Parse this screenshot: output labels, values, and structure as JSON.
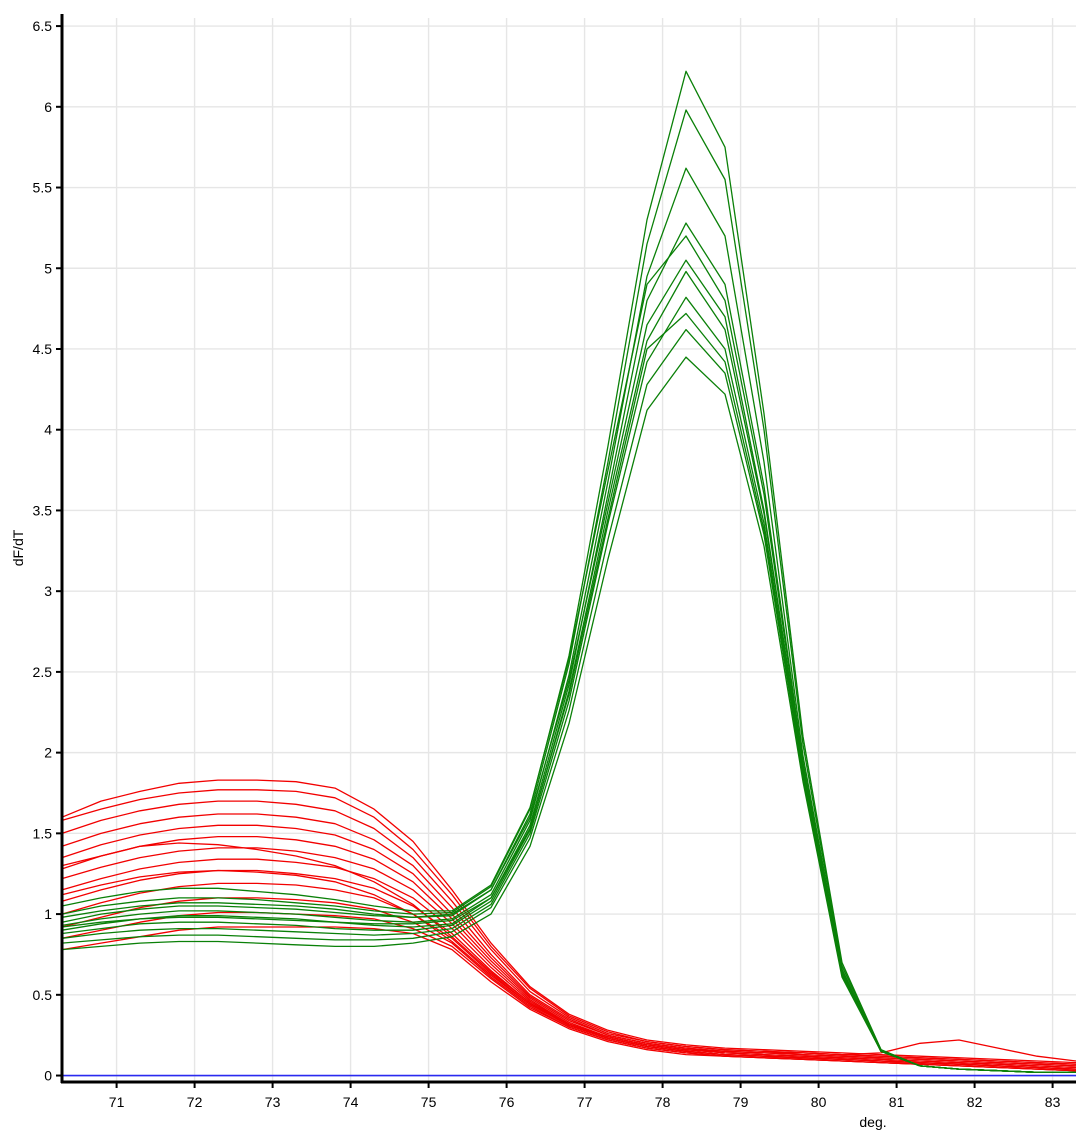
{
  "chart_data": {
    "type": "line",
    "title": "",
    "xlabel": "deg.",
    "ylabel": "dF/dT",
    "xlim": [
      70.3,
      83.3
    ],
    "ylim": [
      -0.04,
      6.55
    ],
    "x_ticks": [
      71,
      72,
      73,
      74,
      75,
      76,
      77,
      78,
      79,
      80,
      81,
      82,
      83
    ],
    "x_tick_labels": [
      "71",
      "72",
      "73",
      "74",
      "75",
      "76",
      "77",
      "78",
      "79",
      "80",
      "81",
      "82",
      "83"
    ],
    "y_ticks": [
      0,
      0.5,
      1,
      1.5,
      2,
      2.5,
      3,
      3.5,
      4,
      4.5,
      5,
      5.5,
      6,
      6.5
    ],
    "y_tick_labels": [
      "0",
      "0.5",
      "1",
      "1.5",
      "2",
      "2.5",
      "3",
      "3.5",
      "4",
      "4.5",
      "5",
      "5.5",
      "6",
      "6.5"
    ],
    "grid": true,
    "legend": "none",
    "colors": {
      "red_group": "#f20000",
      "green_group": "#0a8008",
      "baseline": "#2a2af0"
    },
    "x": [
      70.3,
      70.8,
      71.3,
      71.8,
      72.3,
      72.8,
      73.3,
      73.8,
      74.3,
      74.8,
      75.3,
      75.8,
      76.3,
      76.8,
      77.3,
      77.8,
      78.3,
      78.8,
      79.3,
      79.8,
      80.3,
      80.8,
      81.3,
      81.8,
      82.3,
      82.8,
      83.3
    ],
    "series": [
      {
        "group": "red",
        "values": [
          1.6,
          1.7,
          1.76,
          1.81,
          1.83,
          1.83,
          1.82,
          1.78,
          1.65,
          1.45,
          1.15,
          0.82,
          0.55,
          0.38,
          0.28,
          0.22,
          0.19,
          0.17,
          0.16,
          0.15,
          0.14,
          0.13,
          0.12,
          0.11,
          0.1,
          0.09,
          0.08
        ]
      },
      {
        "group": "red",
        "values": [
          1.58,
          1.65,
          1.71,
          1.75,
          1.77,
          1.77,
          1.76,
          1.72,
          1.6,
          1.4,
          1.12,
          0.8,
          0.54,
          0.37,
          0.27,
          0.21,
          0.18,
          0.16,
          0.15,
          0.14,
          0.13,
          0.12,
          0.11,
          0.1,
          0.09,
          0.08,
          0.07
        ]
      },
      {
        "group": "red",
        "values": [
          1.5,
          1.58,
          1.64,
          1.68,
          1.7,
          1.7,
          1.68,
          1.64,
          1.53,
          1.35,
          1.08,
          0.78,
          0.52,
          0.36,
          0.26,
          0.21,
          0.18,
          0.16,
          0.15,
          0.14,
          0.13,
          0.12,
          0.11,
          0.1,
          0.09,
          0.08,
          0.07
        ]
      },
      {
        "group": "red",
        "values": [
          1.42,
          1.5,
          1.56,
          1.6,
          1.62,
          1.62,
          1.6,
          1.56,
          1.46,
          1.3,
          1.04,
          0.75,
          0.5,
          0.35,
          0.25,
          0.2,
          0.17,
          0.15,
          0.14,
          0.13,
          0.12,
          0.11,
          0.1,
          0.09,
          0.08,
          0.07,
          0.06
        ]
      },
      {
        "group": "red",
        "values": [
          1.35,
          1.43,
          1.49,
          1.53,
          1.55,
          1.55,
          1.53,
          1.49,
          1.4,
          1.25,
          1.0,
          0.73,
          0.49,
          0.34,
          0.25,
          0.2,
          0.17,
          0.15,
          0.14,
          0.13,
          0.12,
          0.11,
          0.1,
          0.09,
          0.08,
          0.07,
          0.06
        ]
      },
      {
        "group": "red",
        "values": [
          1.28,
          1.36,
          1.42,
          1.46,
          1.48,
          1.48,
          1.46,
          1.42,
          1.34,
          1.2,
          0.97,
          0.71,
          0.48,
          0.33,
          0.24,
          0.19,
          0.16,
          0.14,
          0.13,
          0.12,
          0.11,
          0.1,
          0.09,
          0.08,
          0.07,
          0.06,
          0.05
        ]
      },
      {
        "group": "red",
        "values": [
          1.22,
          1.29,
          1.35,
          1.39,
          1.41,
          1.41,
          1.39,
          1.35,
          1.28,
          1.15,
          0.94,
          0.69,
          0.47,
          0.32,
          0.24,
          0.19,
          0.16,
          0.14,
          0.13,
          0.12,
          0.11,
          0.1,
          0.09,
          0.08,
          0.07,
          0.06,
          0.05
        ]
      },
      {
        "group": "red",
        "values": [
          1.15,
          1.22,
          1.28,
          1.32,
          1.34,
          1.34,
          1.32,
          1.29,
          1.22,
          1.1,
          0.91,
          0.67,
          0.46,
          0.32,
          0.23,
          0.18,
          0.15,
          0.13,
          0.12,
          0.11,
          0.1,
          0.09,
          0.08,
          0.07,
          0.06,
          0.05,
          0.04
        ]
      },
      {
        "group": "red",
        "values": [
          1.08,
          1.15,
          1.21,
          1.25,
          1.27,
          1.27,
          1.25,
          1.22,
          1.16,
          1.05,
          0.88,
          0.65,
          0.45,
          0.31,
          0.23,
          0.18,
          0.15,
          0.13,
          0.12,
          0.11,
          0.1,
          0.09,
          0.08,
          0.07,
          0.06,
          0.05,
          0.04
        ]
      },
      {
        "group": "red",
        "values": [
          1.0,
          1.07,
          1.13,
          1.17,
          1.19,
          1.19,
          1.18,
          1.15,
          1.1,
          1.0,
          0.85,
          0.63,
          0.44,
          0.31,
          0.23,
          0.18,
          0.15,
          0.13,
          0.12,
          0.11,
          0.1,
          0.09,
          0.08,
          0.07,
          0.06,
          0.05,
          0.04
        ]
      },
      {
        "group": "red",
        "values": [
          0.92,
          0.98,
          1.04,
          1.08,
          1.1,
          1.1,
          1.09,
          1.07,
          1.03,
          0.95,
          0.82,
          0.61,
          0.43,
          0.3,
          0.22,
          0.17,
          0.14,
          0.12,
          0.11,
          0.1,
          0.09,
          0.08,
          0.07,
          0.06,
          0.05,
          0.04,
          0.03
        ]
      },
      {
        "group": "red",
        "values": [
          0.85,
          0.9,
          0.95,
          0.99,
          1.01,
          1.01,
          1.0,
          0.99,
          0.97,
          0.91,
          0.8,
          0.6,
          0.42,
          0.3,
          0.22,
          0.17,
          0.14,
          0.12,
          0.11,
          0.1,
          0.09,
          0.08,
          0.07,
          0.06,
          0.05,
          0.04,
          0.03
        ]
      },
      {
        "group": "red",
        "values": [
          0.78,
          0.82,
          0.86,
          0.9,
          0.92,
          0.92,
          0.92,
          0.92,
          0.91,
          0.88,
          0.78,
          0.58,
          0.41,
          0.29,
          0.21,
          0.16,
          0.13,
          0.12,
          0.11,
          0.1,
          0.09,
          0.08,
          0.07,
          0.06,
          0.05,
          0.04,
          0.03
        ]
      },
      {
        "group": "red",
        "values": [
          1.3,
          1.36,
          1.42,
          1.44,
          1.43,
          1.4,
          1.36,
          1.3,
          1.2,
          1.06,
          0.86,
          0.64,
          0.45,
          0.32,
          0.24,
          0.19,
          0.16,
          0.15,
          0.14,
          0.14,
          0.13,
          0.14,
          0.2,
          0.22,
          0.17,
          0.12,
          0.09
        ]
      },
      {
        "group": "red",
        "values": [
          1.12,
          1.18,
          1.23,
          1.26,
          1.27,
          1.26,
          1.24,
          1.2,
          1.12,
          1.0,
          0.83,
          0.62,
          0.44,
          0.31,
          0.23,
          0.18,
          0.15,
          0.13,
          0.12,
          0.11,
          0.1,
          0.09,
          0.08,
          0.07,
          0.06,
          0.05,
          0.04
        ]
      },
      {
        "group": "green",
        "values": [
          0.95,
          1.0,
          1.03,
          1.05,
          1.05,
          1.04,
          1.03,
          1.01,
          0.99,
          0.98,
          1.0,
          1.15,
          1.6,
          2.45,
          3.55,
          4.65,
          5.05,
          4.7,
          3.5,
          1.9,
          0.65,
          0.15,
          0.06,
          0.04,
          0.03,
          0.02,
          0.02
        ]
      },
      {
        "group": "green",
        "values": [
          1.0,
          1.05,
          1.08,
          1.1,
          1.1,
          1.09,
          1.07,
          1.05,
          1.02,
          1.0,
          1.01,
          1.17,
          1.65,
          2.6,
          3.9,
          5.3,
          6.22,
          5.75,
          4.1,
          2.1,
          0.7,
          0.16,
          0.06,
          0.04,
          0.03,
          0.02,
          0.02
        ]
      },
      {
        "group": "green",
        "values": [
          0.98,
          1.02,
          1.05,
          1.07,
          1.07,
          1.06,
          1.05,
          1.03,
          1.0,
          0.98,
          0.99,
          1.15,
          1.62,
          2.55,
          3.8,
          5.15,
          5.98,
          5.55,
          4.0,
          2.05,
          0.68,
          0.16,
          0.06,
          0.04,
          0.03,
          0.02,
          0.02
        ]
      },
      {
        "group": "green",
        "values": [
          0.93,
          0.97,
          1.0,
          1.02,
          1.02,
          1.01,
          1.0,
          0.98,
          0.96,
          0.95,
          0.97,
          1.12,
          1.58,
          2.48,
          3.68,
          4.95,
          5.62,
          5.2,
          3.8,
          1.98,
          0.66,
          0.15,
          0.06,
          0.04,
          0.03,
          0.02,
          0.02
        ]
      },
      {
        "group": "green",
        "values": [
          0.9,
          0.94,
          0.97,
          0.99,
          0.99,
          0.98,
          0.97,
          0.95,
          0.93,
          0.92,
          0.94,
          1.1,
          1.55,
          2.42,
          3.6,
          4.8,
          5.28,
          4.9,
          3.65,
          1.94,
          0.65,
          0.15,
          0.06,
          0.04,
          0.03,
          0.02,
          0.02
        ]
      },
      {
        "group": "green",
        "values": [
          0.88,
          0.91,
          0.94,
          0.95,
          0.95,
          0.94,
          0.93,
          0.91,
          0.9,
          0.9,
          0.93,
          1.08,
          1.52,
          2.38,
          3.5,
          4.55,
          4.98,
          4.62,
          3.48,
          1.9,
          0.64,
          0.15,
          0.06,
          0.04,
          0.03,
          0.02,
          0.02
        ]
      },
      {
        "group": "green",
        "values": [
          0.85,
          0.88,
          0.9,
          0.91,
          0.91,
          0.9,
          0.89,
          0.88,
          0.87,
          0.88,
          0.91,
          1.06,
          1.5,
          2.32,
          3.42,
          4.42,
          4.82,
          4.5,
          3.42,
          1.88,
          0.63,
          0.15,
          0.06,
          0.04,
          0.03,
          0.02,
          0.02
        ]
      },
      {
        "group": "green",
        "values": [
          0.82,
          0.84,
          0.86,
          0.87,
          0.87,
          0.86,
          0.85,
          0.84,
          0.84,
          0.85,
          0.89,
          1.04,
          1.47,
          2.26,
          3.32,
          4.28,
          4.62,
          4.35,
          3.35,
          1.85,
          0.62,
          0.15,
          0.06,
          0.04,
          0.03,
          0.02,
          0.02
        ]
      },
      {
        "group": "green",
        "values": [
          0.78,
          0.8,
          0.82,
          0.83,
          0.83,
          0.82,
          0.81,
          0.8,
          0.8,
          0.82,
          0.86,
          1.0,
          1.42,
          2.18,
          3.2,
          4.12,
          4.45,
          4.22,
          3.28,
          1.82,
          0.61,
          0.15,
          0.06,
          0.04,
          0.03,
          0.02,
          0.02
        ]
      },
      {
        "group": "green",
        "values": [
          1.05,
          1.1,
          1.14,
          1.16,
          1.16,
          1.14,
          1.12,
          1.09,
          1.05,
          1.02,
          1.02,
          1.18,
          1.66,
          2.58,
          3.75,
          4.9,
          5.2,
          4.8,
          3.6,
          1.92,
          0.65,
          0.15,
          0.06,
          0.04,
          0.03,
          0.02,
          0.02
        ]
      },
      {
        "group": "green",
        "values": [
          0.92,
          0.95,
          0.97,
          0.98,
          0.98,
          0.97,
          0.96,
          0.95,
          0.94,
          0.94,
          0.96,
          1.1,
          1.53,
          2.36,
          3.45,
          4.5,
          4.72,
          4.42,
          3.38,
          1.86,
          0.63,
          0.15,
          0.06,
          0.04,
          0.03,
          0.02,
          0.02
        ]
      }
    ],
    "baseline": {
      "y": 0
    }
  }
}
